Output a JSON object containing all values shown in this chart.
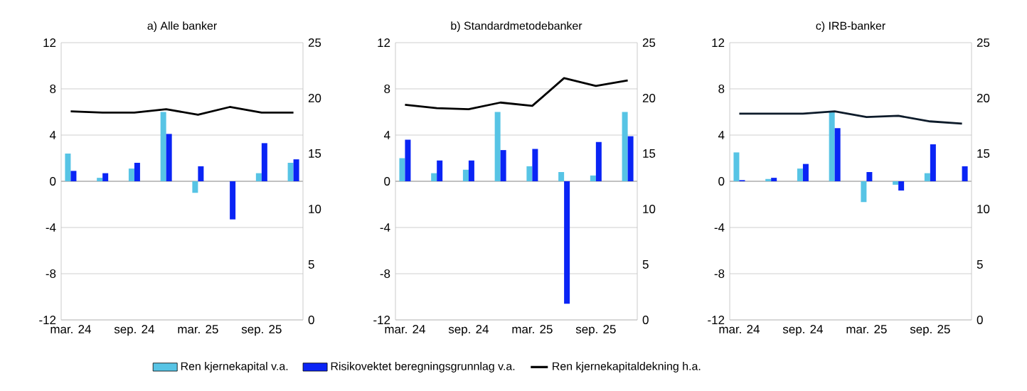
{
  "chart_data": [
    {
      "type": "bar",
      "title": "a) Alle banker",
      "categories": [
        "mar. 24",
        null,
        "sep. 24",
        null,
        "mar. 25",
        null,
        "sep. 25",
        null
      ],
      "ylim": [
        -12,
        12
      ],
      "yticks": [
        -12,
        -8,
        -4,
        0,
        4,
        8,
        12
      ],
      "y2lim": [
        0,
        25
      ],
      "y2ticks": [
        0,
        5,
        10,
        15,
        20,
        25
      ],
      "grid": "y",
      "legend": "bottom",
      "series": [
        {
          "name": "Ren kjernekapital v.a.",
          "color": "#57c4e5",
          "values": [
            2.4,
            0.3,
            1.1,
            6.0,
            -1.0,
            0.0,
            0.7,
            1.6
          ]
        },
        {
          "name": "Risikovektet beregningsgrunnlag v.a.",
          "color": "#0a24f5",
          "values": [
            0.9,
            0.7,
            1.6,
            4.1,
            1.3,
            -3.3,
            3.3,
            1.9
          ]
        },
        {
          "name": "Ren kjernekapitaldekning h.a.",
          "type": "line",
          "axis": "y2",
          "color": "#000000",
          "values": [
            18.8,
            18.7,
            18.7,
            19.0,
            18.5,
            19.2,
            18.7,
            18.7
          ]
        }
      ]
    },
    {
      "type": "bar",
      "title": "b) Standardmetodebanker",
      "categories": [
        "mar. 24",
        null,
        "sep. 24",
        null,
        "mar. 25",
        null,
        "sep. 25",
        null
      ],
      "ylim": [
        -12,
        12
      ],
      "yticks": [
        -12,
        -8,
        -4,
        0,
        4,
        8,
        12
      ],
      "y2lim": [
        0,
        25
      ],
      "y2ticks": [
        0,
        5,
        10,
        15,
        20,
        25
      ],
      "grid": "y",
      "series": [
        {
          "color": "#57c4e5",
          "values": [
            2.0,
            0.7,
            1.0,
            6.0,
            1.3,
            0.8,
            0.5,
            6.0
          ]
        },
        {
          "color": "#0a24f5",
          "values": [
            3.6,
            1.8,
            1.8,
            2.7,
            2.8,
            -10.6,
            3.4,
            3.9
          ]
        },
        {
          "type": "line",
          "axis": "y2",
          "color": "#000000",
          "values": [
            19.4,
            19.1,
            19.0,
            19.6,
            19.3,
            21.8,
            21.1,
            21.6
          ]
        }
      ]
    },
    {
      "type": "bar",
      "title": "c) IRB-banker",
      "categories": [
        "mar. 24",
        null,
        "sep. 24",
        null,
        "mar. 25",
        null,
        "sep. 25",
        null
      ],
      "ylim": [
        -12,
        12
      ],
      "yticks": [
        -12,
        -8,
        -4,
        0,
        4,
        8,
        12
      ],
      "y2lim": [
        0,
        25
      ],
      "y2ticks": [
        0,
        5,
        10,
        15,
        20,
        25
      ],
      "grid": "y",
      "series": [
        {
          "color": "#57c4e5",
          "values": [
            2.5,
            0.2,
            1.1,
            6.0,
            -1.8,
            -0.3,
            0.7,
            0.0
          ]
        },
        {
          "color": "#0a24f5",
          "values": [
            0.1,
            0.3,
            1.5,
            4.6,
            0.8,
            -0.8,
            3.2,
            1.3
          ]
        },
        {
          "type": "line",
          "axis": "y2",
          "color": "#0d1b2a",
          "values": [
            18.6,
            18.6,
            18.6,
            18.8,
            18.3,
            18.4,
            17.9,
            17.7
          ]
        }
      ]
    }
  ]
}
